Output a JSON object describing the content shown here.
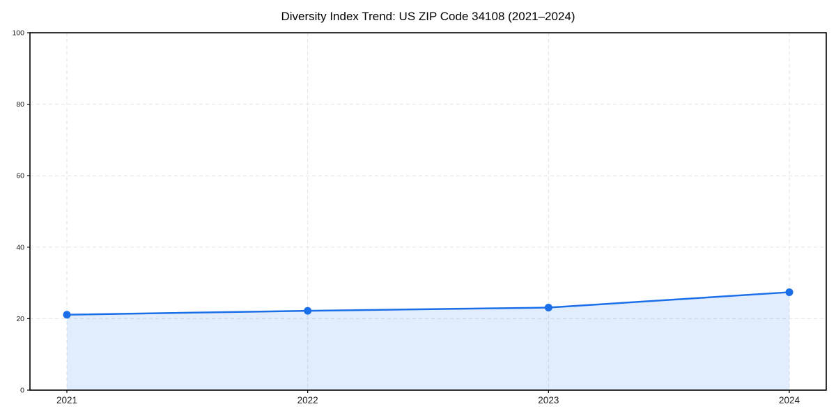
{
  "chart_data": {
    "type": "area",
    "title": "Diversity Index Trend: US ZIP Code 34108 (2021–2024)",
    "categories": [
      "2021",
      "2022",
      "2023",
      "2024"
    ],
    "series": [
      {
        "name": "Diversity Index",
        "values": [
          21.1,
          22.2,
          23.1,
          27.4
        ]
      }
    ],
    "xlabel": "",
    "ylabel": "",
    "ylim": [
      0,
      100
    ],
    "yticks": [
      0,
      20,
      40,
      60,
      80,
      100
    ],
    "grid": true,
    "grid_style": "dashed",
    "legend": "none",
    "line_color": "#1a6fe8",
    "marker": "circle",
    "fill_opacity": 0.13,
    "grid_color": "#e2e2e2",
    "axis_color": "#000000",
    "text_color": "#1a1a1a",
    "background_color": "#ffffff"
  }
}
